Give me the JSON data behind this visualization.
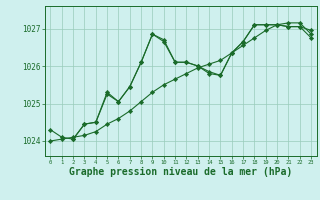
{
  "background_color": "#cff0ee",
  "grid_color": "#99ccbb",
  "line_color": "#1a6b2a",
  "marker_color": "#1a6b2a",
  "xlabel": "Graphe pression niveau de la mer (hPa)",
  "xlabel_fontsize": 7,
  "xlim": [
    -0.5,
    23.5
  ],
  "ylim": [
    1023.6,
    1027.6
  ],
  "yticks": [
    1024,
    1025,
    1026,
    1027
  ],
  "xticks": [
    0,
    1,
    2,
    3,
    4,
    5,
    6,
    7,
    8,
    9,
    10,
    11,
    12,
    13,
    14,
    15,
    16,
    17,
    18,
    19,
    20,
    21,
    22,
    23
  ],
  "series1_x": [
    0,
    1,
    2,
    3,
    4,
    5,
    6,
    7,
    8,
    9,
    10,
    11,
    12,
    13,
    14,
    15,
    16,
    17,
    18,
    19,
    20,
    21,
    22,
    23
  ],
  "series1_y": [
    1024.3,
    1024.1,
    1024.05,
    1024.45,
    1024.5,
    1025.3,
    1025.05,
    1025.45,
    1026.1,
    1026.85,
    1026.7,
    1026.1,
    1026.1,
    1026.0,
    1025.85,
    1025.75,
    1026.35,
    1026.65,
    1027.1,
    1027.1,
    1027.1,
    1027.05,
    1027.05,
    1026.95
  ],
  "series2_x": [
    0,
    1,
    2,
    3,
    4,
    5,
    6,
    7,
    8,
    9,
    10,
    11,
    12,
    13,
    14,
    15,
    16,
    17,
    18,
    19,
    20,
    21,
    22,
    23
  ],
  "series2_y": [
    1024.0,
    1024.05,
    1024.1,
    1024.15,
    1024.25,
    1024.45,
    1024.6,
    1024.8,
    1025.05,
    1025.3,
    1025.5,
    1025.65,
    1025.8,
    1025.95,
    1026.05,
    1026.15,
    1026.35,
    1026.55,
    1026.75,
    1026.95,
    1027.1,
    1027.15,
    1027.15,
    1026.85
  ],
  "series3_x": [
    2,
    3,
    4,
    5,
    6,
    7,
    8,
    9,
    10,
    11,
    12,
    13,
    14,
    15,
    16,
    17,
    18,
    19,
    20,
    21,
    22,
    23
  ],
  "series3_y": [
    1024.05,
    1024.45,
    1024.5,
    1025.25,
    1025.05,
    1025.45,
    1026.1,
    1026.85,
    1026.65,
    1026.1,
    1026.1,
    1026.0,
    1025.8,
    1025.75,
    1026.35,
    1026.65,
    1027.1,
    1027.1,
    1027.1,
    1027.05,
    1027.05,
    1026.75
  ]
}
